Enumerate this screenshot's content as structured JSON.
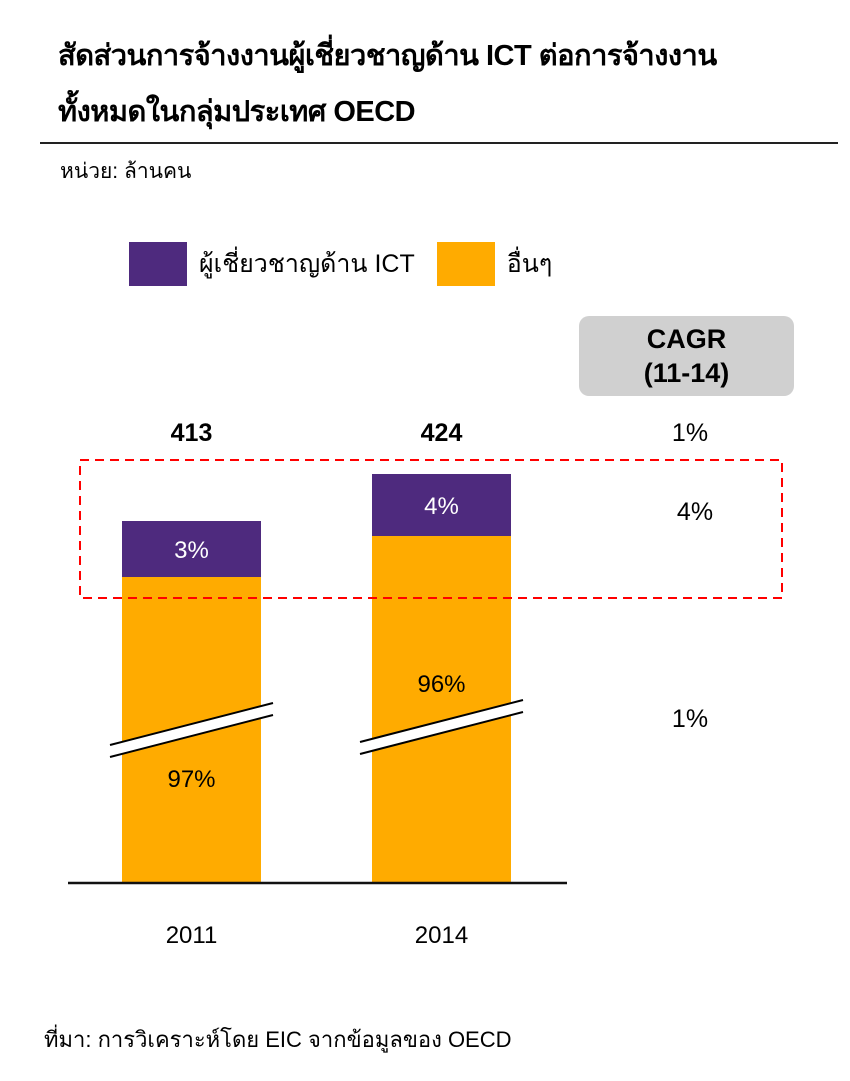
{
  "header": {
    "title_line1": "สัดส่วนการจ้างงานผู้เชี่ยวชาญด้าน ICT ต่อการจ้างงาน",
    "title_line2": "ทั้งหมดในกลุ่มประเทศ OECD",
    "unit": "หน่วย: ล้านคน"
  },
  "legend": [
    {
      "label": "ผู้เชี่ยวชาญด้าน ICT",
      "color": "#4E2A7E"
    },
    {
      "label": "อื่นๆ",
      "color": "#FFAB00"
    }
  ],
  "cagr": {
    "header_line1": "CAGR",
    "header_line2": "(11-14)",
    "total": "1%",
    "ict": "4%",
    "others": "1%"
  },
  "footer": {
    "source": "ที่มา: การวิเคราะห์โดย EIC จากข้อมูลของ OECD"
  },
  "colors": {
    "ict": "#4E2A7E",
    "others": "#FFAB00",
    "highlight_box": "#FF0000",
    "cagr_bg": "#D0D0D0"
  },
  "chart_data": {
    "type": "bar",
    "stacked": true,
    "axis_break": true,
    "title": "สัดส่วนการจ้างงานผู้เชี่ยวชาญด้าน ICT ต่อการจ้างงานทั้งหมดในกลุ่มประเทศ OECD",
    "ylabel": "ล้านคน",
    "categories": [
      "2011",
      "2014"
    ],
    "totals": [
      413,
      424
    ],
    "total_labels": [
      "413",
      "424"
    ],
    "series": [
      {
        "name": "อื่นๆ",
        "values_pct": [
          97,
          96
        ],
        "labels": [
          "97%",
          "96%"
        ],
        "color": "#FFAB00"
      },
      {
        "name": "ผู้เชี่ยวชาญด้าน ICT",
        "values_pct": [
          3,
          4
        ],
        "labels": [
          "3%",
          "4%"
        ],
        "color": "#4E2A7E"
      }
    ],
    "cagr_11_14": {
      "total": "1%",
      "ict": "4%",
      "others": "1%"
    },
    "legend_position": "top"
  }
}
